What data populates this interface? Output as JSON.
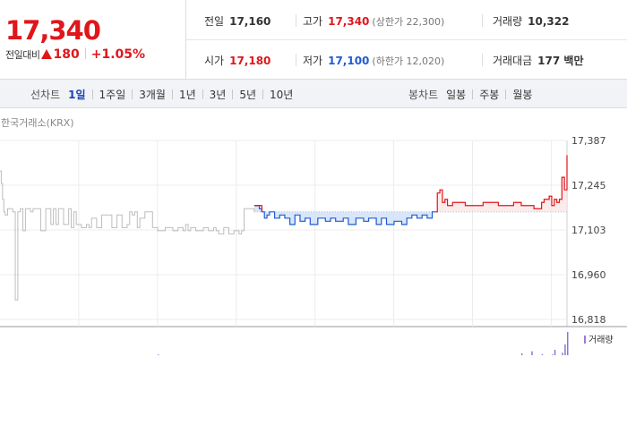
{
  "summary": {
    "price": "17,340",
    "change_label": "전일대비",
    "change_value": "180",
    "change_pct": "+1.05%"
  },
  "stats": {
    "prev_close": {
      "label": "전일",
      "value": "17,160"
    },
    "high": {
      "label": "고가",
      "value": "17,340",
      "sub": "(상한가 22,300)"
    },
    "volume": {
      "label": "거래량",
      "value": "10,322"
    },
    "open": {
      "label": "시가",
      "value": "17,180"
    },
    "low": {
      "label": "저가",
      "value": "17,100",
      "sub": "(하한가 12,020)"
    },
    "amount": {
      "label": "거래대금",
      "value": "177 백만"
    }
  },
  "line_tabs": {
    "label": "선차트",
    "items": [
      "1일",
      "1주일",
      "3개월",
      "1년",
      "3년",
      "5년",
      "10년"
    ],
    "active": 0
  },
  "candle_tabs": {
    "label": "봉차트",
    "items": [
      "일봉",
      "주봉",
      "월봉"
    ]
  },
  "colors": {
    "up": "#e0161b",
    "down": "#1e5bd4",
    "accent": "#1e40b4",
    "prev": "#bdbdbd"
  },
  "chart_data": {
    "type": "line",
    "source": "한국거래소(KRX)",
    "y_ticks": [
      "17,387",
      "17,245",
      "17,103",
      "16,960",
      "16,818"
    ],
    "ylim": [
      16818,
      17387
    ],
    "reference": 17160,
    "volume_legend": "거래량",
    "series": [
      {
        "name": "previous-session",
        "color": "#bdbdbd",
        "x": [
          0,
          0.5,
          1,
          1.5,
          2,
          3,
          4,
          5,
          6,
          7,
          8,
          9,
          10,
          12,
          13,
          14,
          15,
          16,
          18,
          20,
          21,
          22,
          23,
          25,
          27,
          28,
          29,
          30,
          32,
          34,
          35,
          36,
          38,
          40,
          42,
          44,
          46,
          48,
          50,
          51,
          52,
          53,
          54,
          55,
          57,
          58,
          60,
          62,
          65,
          68,
          70,
          72,
          73,
          74,
          75,
          77,
          80,
          82,
          84,
          85,
          86,
          88,
          90,
          92,
          94,
          95,
          96,
          98,
          100
        ],
        "y": [
          17290,
          17250,
          17200,
          17160,
          17150,
          17170,
          17170,
          17160,
          16880,
          17160,
          17170,
          17100,
          17170,
          17160,
          17170,
          17170,
          17170,
          17100,
          17170,
          17120,
          17170,
          17120,
          17170,
          17120,
          17170,
          17110,
          17160,
          17120,
          17110,
          17120,
          17110,
          17140,
          17110,
          17150,
          17150,
          17110,
          17150,
          17110,
          17120,
          17160,
          17150,
          17160,
          17110,
          17140,
          17160,
          17160,
          17110,
          17100,
          17110,
          17100,
          17110,
          17100,
          17120,
          17100,
          17110,
          17100,
          17110,
          17100,
          17110,
          17100,
          17090,
          17110,
          17090,
          17100,
          17090,
          17100,
          17170,
          17170,
          17160
        ]
      },
      {
        "name": "today",
        "color": "#e0161b",
        "x": [
          100,
          102,
          103,
          104,
          105,
          106,
          108,
          110,
          112,
          114,
          116,
          118,
          120,
          122,
          125,
          128,
          130,
          132,
          135,
          137,
          140,
          143,
          145,
          148,
          150,
          152,
          155,
          158,
          160,
          162,
          164,
          166,
          168,
          170,
          171,
          172,
          173,
          174,
          175,
          176,
          178,
          180,
          183,
          186,
          190,
          193,
          196,
          199,
          202,
          205,
          208,
          210,
          212,
          213,
          214,
          215,
          216,
          217,
          218,
          219,
          220,
          221,
          222,
          223
        ],
        "y": [
          17180,
          17170,
          17160,
          17140,
          17150,
          17160,
          17140,
          17150,
          17140,
          17120,
          17150,
          17130,
          17140,
          17120,
          17140,
          17130,
          17140,
          17130,
          17140,
          17120,
          17140,
          17130,
          17140,
          17120,
          17140,
          17120,
          17130,
          17120,
          17140,
          17150,
          17140,
          17150,
          17140,
          17160,
          17160,
          17220,
          17230,
          17190,
          17200,
          17180,
          17190,
          17190,
          17180,
          17180,
          17190,
          17190,
          17180,
          17180,
          17190,
          17180,
          17180,
          17170,
          17170,
          17190,
          17200,
          17200,
          17210,
          17180,
          17200,
          17190,
          17200,
          17270,
          17230,
          17340
        ]
      }
    ],
    "volume": {
      "x": [
        62,
        205,
        209,
        213,
        217,
        218,
        221,
        222,
        223
      ],
      "values": [
        4,
        10,
        22,
        6,
        4,
        30,
        14,
        60,
        130
      ]
    }
  }
}
